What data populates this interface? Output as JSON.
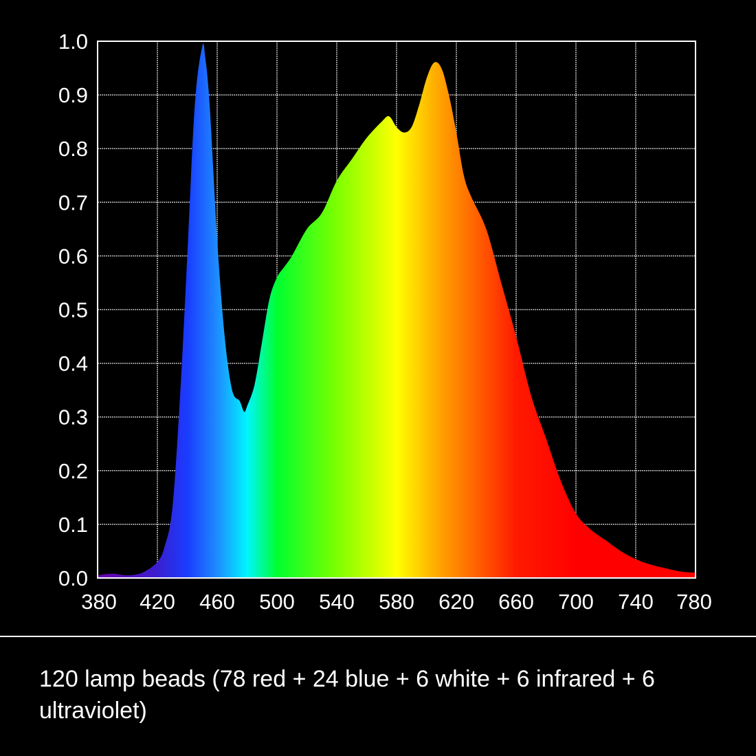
{
  "chart_data": {
    "type": "area",
    "x_ticks": [
      "380",
      "420",
      "460",
      "500",
      "540",
      "580",
      "620",
      "660",
      "700",
      "740",
      "780"
    ],
    "y_ticks": [
      "0.0",
      "0.1",
      "0.2",
      "0.3",
      "0.4",
      "0.5",
      "0.6",
      "0.7",
      "0.8",
      "0.9",
      "1.0"
    ],
    "xlim": [
      380,
      780
    ],
    "ylim": [
      0,
      1.0
    ],
    "grid": true,
    "x": [
      380,
      390,
      400,
      410,
      420,
      425,
      430,
      435,
      440,
      445,
      450,
      452,
      455,
      460,
      465,
      470,
      475,
      478,
      480,
      485,
      490,
      495,
      500,
      505,
      510,
      520,
      530,
      540,
      550,
      560,
      570,
      575,
      580,
      585,
      590,
      595,
      600,
      605,
      610,
      615,
      620,
      625,
      630,
      640,
      650,
      660,
      670,
      680,
      690,
      700,
      710,
      720,
      730,
      740,
      750,
      760,
      770,
      780
    ],
    "values": [
      0.005,
      0.008,
      0.005,
      0.01,
      0.03,
      0.06,
      0.13,
      0.33,
      0.6,
      0.88,
      0.99,
      0.97,
      0.88,
      0.63,
      0.45,
      0.35,
      0.33,
      0.31,
      0.32,
      0.36,
      0.44,
      0.52,
      0.56,
      0.58,
      0.6,
      0.65,
      0.68,
      0.74,
      0.78,
      0.82,
      0.85,
      0.86,
      0.84,
      0.83,
      0.84,
      0.88,
      0.93,
      0.96,
      0.95,
      0.9,
      0.83,
      0.75,
      0.71,
      0.65,
      0.55,
      0.45,
      0.34,
      0.26,
      0.18,
      0.12,
      0.09,
      0.07,
      0.05,
      0.035,
      0.025,
      0.018,
      0.012,
      0.01
    ],
    "colors": {
      "background": "#000000",
      "grid": "#ffffff",
      "spectrum_stops": [
        {
          "nm": 380,
          "color": "#6a00a8"
        },
        {
          "nm": 420,
          "color": "#3a1fd0"
        },
        {
          "nm": 440,
          "color": "#1a3cff"
        },
        {
          "nm": 460,
          "color": "#1e8cff"
        },
        {
          "nm": 480,
          "color": "#00f5ff"
        },
        {
          "nm": 500,
          "color": "#00ff30"
        },
        {
          "nm": 540,
          "color": "#7cff00"
        },
        {
          "nm": 580,
          "color": "#ffff00"
        },
        {
          "nm": 610,
          "color": "#ffa000"
        },
        {
          "nm": 640,
          "color": "#ff5000"
        },
        {
          "nm": 660,
          "color": "#ff1a00"
        },
        {
          "nm": 700,
          "color": "#ff0000"
        },
        {
          "nm": 780,
          "color": "#ff0000"
        }
      ]
    }
  },
  "caption": "120 lamp beads (78 red + 24 blue + 6 white + 6 infrared + 6 ultraviolet)"
}
